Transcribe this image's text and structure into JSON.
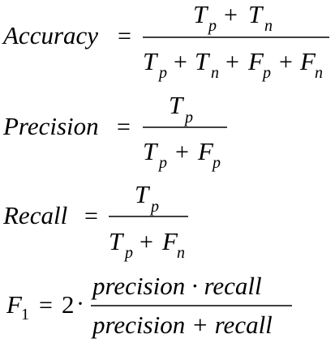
{
  "colors": {
    "background": "#ffffff",
    "ink": "#000000"
  },
  "formulas": [
    {
      "name": "accuracy",
      "lhs": "Accuracy",
      "equals": "=",
      "numerator": [
        {
          "sym": "T",
          "sub": "p"
        },
        {
          "op": "+"
        },
        {
          "sym": "T",
          "sub": "n"
        }
      ],
      "denominator": [
        {
          "sym": "T",
          "sub": "p"
        },
        {
          "op": "+"
        },
        {
          "sym": "T",
          "sub": "n"
        },
        {
          "op": "+"
        },
        {
          "sym": "F",
          "sub": "p"
        },
        {
          "op": "+"
        },
        {
          "sym": "F",
          "sub": "n"
        }
      ]
    },
    {
      "name": "precision",
      "lhs": "Precision",
      "equals": "=",
      "numerator": [
        {
          "sym": "T",
          "sub": "p"
        }
      ],
      "denominator": [
        {
          "sym": "T",
          "sub": "p"
        },
        {
          "op": "+"
        },
        {
          "sym": "F",
          "sub": "p"
        }
      ]
    },
    {
      "name": "recall",
      "lhs": "Recall",
      "equals": "=",
      "numerator": [
        {
          "sym": "T",
          "sub": "p"
        }
      ],
      "denominator": [
        {
          "sym": "T",
          "sub": "p"
        },
        {
          "op": "+"
        },
        {
          "sym": "F",
          "sub": "n"
        }
      ]
    },
    {
      "name": "f1",
      "lhs": "F",
      "lhs_sub": "1",
      "equals": "=",
      "coefficient": "2",
      "dot": "·",
      "numerator_text": "precision · recall",
      "denominator_text": "precision + recall"
    }
  ]
}
